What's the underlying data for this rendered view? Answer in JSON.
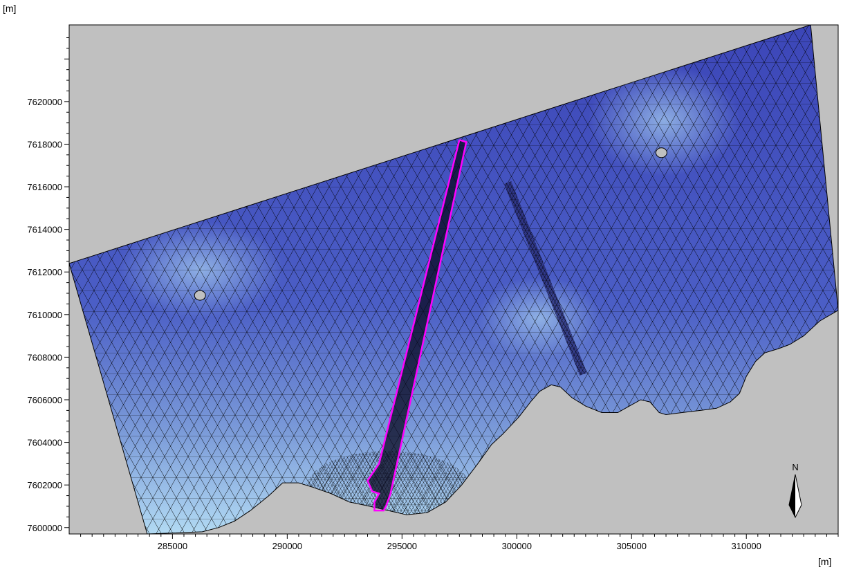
{
  "axes": {
    "y_unit": "[m]",
    "x_unit": "[m]",
    "x_ticks": [
      "285000",
      "290000",
      "295000",
      "300000",
      "305000",
      "310000"
    ],
    "y_ticks": [
      "7600000",
      "7602000",
      "7604000",
      "7606000",
      "7608000",
      "7610000",
      "7612000",
      "7614000",
      "7616000",
      "7618000",
      "7620000"
    ]
  },
  "north_arrow": {
    "label": "N"
  },
  "colors": {
    "land": "#c0c0c0",
    "deep_water": "#3c46b8",
    "shallow_water": "#a8d4f0",
    "mesh_lines": "#000000",
    "channel_outline": "#ff00ff"
  },
  "chart_data": {
    "type": "map",
    "x_range": [
      280500,
      314000
    ],
    "y_range": [
      7599700,
      7623600
    ],
    "domain_polygon": [
      [
        280500,
        7612400
      ],
      [
        312800,
        7623600
      ],
      [
        314000,
        7610200
      ],
      [
        313200,
        7609700
      ],
      [
        312500,
        7609000
      ],
      [
        311900,
        7608600
      ],
      [
        311400,
        7608400
      ],
      [
        310800,
        7608200
      ],
      [
        310400,
        7607800
      ],
      [
        310000,
        7607100
      ],
      [
        309700,
        7606300
      ],
      [
        309300,
        7605900
      ],
      [
        308700,
        7605600
      ],
      [
        308000,
        7605500
      ],
      [
        307200,
        7605400
      ],
      [
        306500,
        7605300
      ],
      [
        306200,
        7605400
      ],
      [
        305800,
        7605900
      ],
      [
        305400,
        7606000
      ],
      [
        304900,
        7605700
      ],
      [
        304400,
        7605400
      ],
      [
        303700,
        7605400
      ],
      [
        303000,
        7605700
      ],
      [
        302400,
        7606100
      ],
      [
        301900,
        7606600
      ],
      [
        301500,
        7606700
      ],
      [
        301000,
        7606400
      ],
      [
        300600,
        7605900
      ],
      [
        300100,
        7605200
      ],
      [
        299400,
        7604400
      ],
      [
        298900,
        7603900
      ],
      [
        298300,
        7603000
      ],
      [
        297600,
        7602000
      ],
      [
        296900,
        7601200
      ],
      [
        296100,
        7600700
      ],
      [
        295200,
        7600600
      ],
      [
        294400,
        7600800
      ],
      [
        293600,
        7601000
      ],
      [
        292700,
        7601200
      ],
      [
        291900,
        7601600
      ],
      [
        291100,
        7601900
      ],
      [
        290500,
        7602100
      ],
      [
        289800,
        7602100
      ],
      [
        289200,
        7601500
      ],
      [
        288400,
        7600800
      ],
      [
        287700,
        7600300
      ],
      [
        287000,
        7600000
      ],
      [
        286300,
        7599800
      ],
      [
        283900,
        7599700
      ]
    ],
    "islands": [
      {
        "x": 286200,
        "y": 7610900
      },
      {
        "x": 306300,
        "y": 7617600
      }
    ],
    "channel_outline": [
      [
        297500,
        7618200
      ],
      [
        297800,
        7618100
      ],
      [
        294500,
        7601600
      ],
      [
        294300,
        7601000
      ],
      [
        294200,
        7600800
      ],
      [
        293800,
        7600800
      ],
      [
        293800,
        7601200
      ],
      [
        294000,
        7601600
      ],
      [
        293700,
        7601700
      ],
      [
        293500,
        7602200
      ],
      [
        294000,
        7603000
      ],
      [
        297500,
        7618200
      ]
    ],
    "trench_line": [
      [
        299600,
        7616200
      ],
      [
        302900,
        7607200
      ]
    ],
    "refinement_zone": {
      "cx": 294400,
      "cy": 7601800,
      "rx": 3600,
      "ry": 1800
    }
  }
}
